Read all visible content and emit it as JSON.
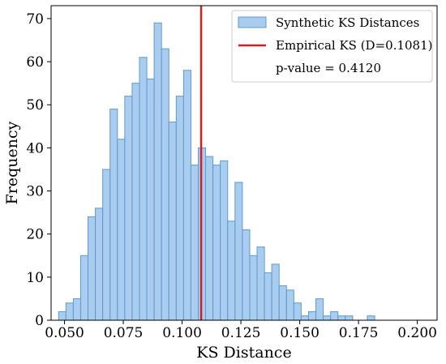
{
  "chart_data": {
    "type": "bar",
    "xlabel": "KS Distance",
    "ylabel": "Frequency",
    "xlim": [
      0.0443,
      0.2084
    ],
    "ylim": [
      0,
      73
    ],
    "xticks": [
      0.05,
      0.075,
      0.1,
      0.125,
      0.15,
      0.175,
      0.2
    ],
    "xtick_labels": [
      "0.050",
      "0.075",
      "0.100",
      "0.125",
      "0.150",
      "0.175",
      "0.200"
    ],
    "yticks": [
      0,
      10,
      20,
      30,
      40,
      50,
      60,
      70
    ],
    "ytick_labels": [
      "0",
      "10",
      "20",
      "30",
      "40",
      "50",
      "60",
      "70"
    ],
    "bin_start": 0.0475,
    "bin_width": 0.003125,
    "counts": [
      2,
      4,
      5,
      15,
      24,
      26,
      35,
      49,
      42,
      52,
      55,
      61,
      56,
      69,
      63,
      46,
      52,
      58,
      36,
      40,
      38,
      36,
      37,
      23,
      32,
      21,
      15,
      17,
      11,
      13,
      8,
      7,
      4,
      1,
      2,
      5,
      1,
      2,
      1,
      1,
      0,
      0,
      1
    ],
    "empirical_ks": 0.1081,
    "bar_color": "#aaccee",
    "bar_edge_color": "#5c9bd0",
    "line_color": "#d42023",
    "legend": {
      "placement": "top-right",
      "hist_label": "Synthetic KS Distances",
      "line_label": "Empirical KS (D=0.1081)",
      "pvalue_label": "p-value = 0.4120"
    }
  }
}
